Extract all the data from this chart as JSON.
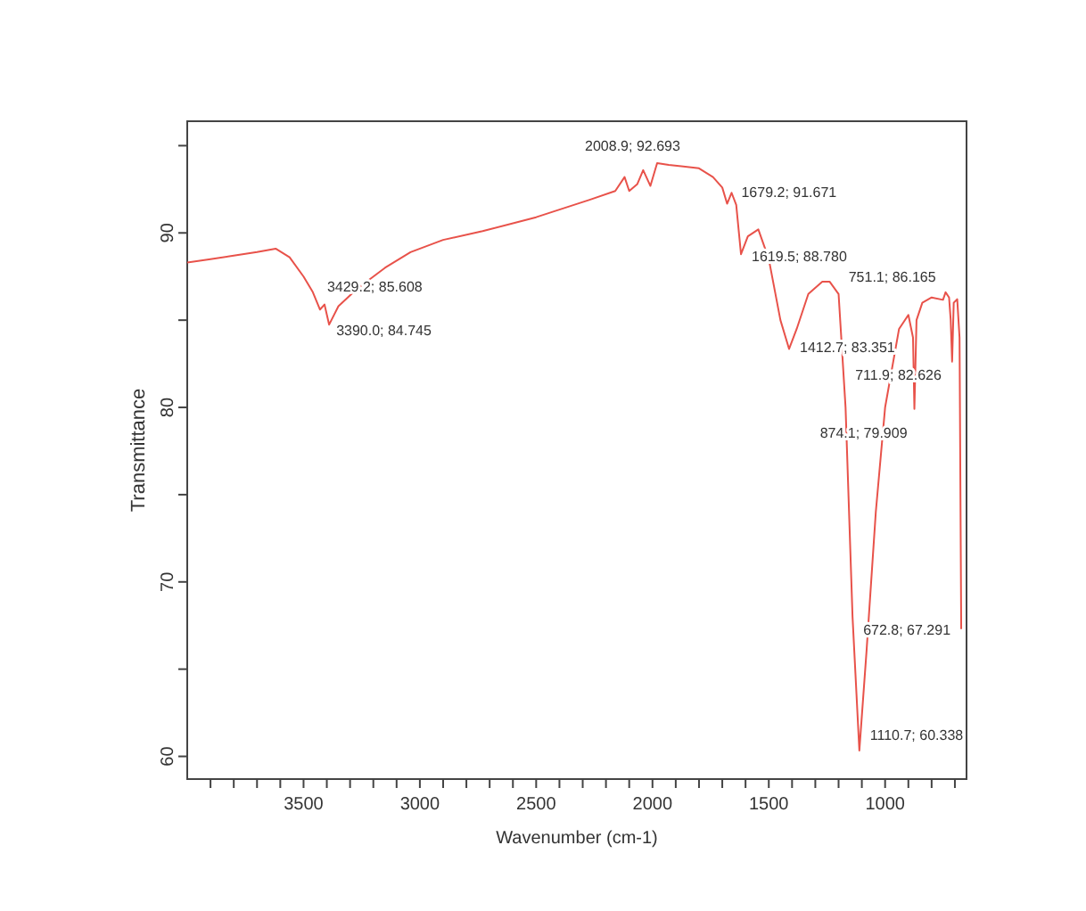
{
  "chart_data": {
    "type": "line",
    "xlabel": "Wavenumber (cm-1)",
    "ylabel": "Transmittance",
    "xlim": [
      4000,
      650
    ],
    "ylim": [
      58.7,
      96.4
    ],
    "xticks": [
      {
        "value": 3900,
        "label": null
      },
      {
        "value": 3800,
        "label": null
      },
      {
        "value": 3700,
        "label": null
      },
      {
        "value": 3600,
        "label": null
      },
      3500,
      {
        "value": 3400,
        "label": null
      },
      {
        "value": 3300,
        "label": null
      },
      {
        "value": 3200,
        "label": null
      },
      {
        "value": 3100,
        "label": null
      },
      3000,
      {
        "value": 2900,
        "label": null
      },
      {
        "value": 2800,
        "label": null
      },
      {
        "value": 2700,
        "label": null
      },
      {
        "value": 2600,
        "label": null
      },
      2500,
      {
        "value": 2400,
        "label": null
      },
      {
        "value": 2300,
        "label": null
      },
      {
        "value": 2200,
        "label": null
      },
      {
        "value": 2100,
        "label": null
      },
      2000,
      {
        "value": 1900,
        "label": null
      },
      {
        "value": 1800,
        "label": null
      },
      {
        "value": 1700,
        "label": null
      },
      {
        "value": 1600,
        "label": null
      },
      1500,
      {
        "value": 1400,
        "label": null
      },
      {
        "value": 1300,
        "label": null
      },
      {
        "value": 1200,
        "label": null
      },
      {
        "value": 1100,
        "label": null
      },
      1000,
      {
        "value": 900,
        "label": null
      },
      {
        "value": 800,
        "label": null
      },
      {
        "value": 700,
        "label": null
      }
    ],
    "yticks": [
      60,
      {
        "value": 65,
        "label": null
      },
      70,
      {
        "value": 75,
        "label": null
      },
      80,
      {
        "value": 85,
        "label": null
      },
      90,
      {
        "value": 95,
        "label": null
      }
    ],
    "grid": false,
    "marker": "none",
    "line_style": "solid",
    "series": [
      {
        "color": "#e8524a",
        "x": [
          4000,
          3900,
          3800,
          3700,
          3620,
          3560,
          3500,
          3460,
          3429.2,
          3410,
          3390,
          3350,
          3270,
          3150,
          3040,
          2900,
          2730,
          2500,
          2270,
          2160,
          2120,
          2100,
          2065,
          2040,
          2008.9,
          1980,
          1930,
          1800,
          1740,
          1700,
          1679.2,
          1660,
          1640,
          1619.5,
          1590,
          1545,
          1500,
          1450,
          1412.7,
          1380,
          1330,
          1270,
          1238,
          1200,
          1170,
          1140,
          1110.7,
          1080,
          1040,
          1000,
          940,
          900,
          880,
          874.1,
          865,
          840,
          800,
          751.1,
          740,
          725,
          718,
          711.9,
          705,
          690,
          680,
          672.8
        ],
        "values": [
          88.3,
          88.5,
          88.7,
          88.9,
          89.1,
          88.6,
          87.5,
          86.6,
          85.608,
          85.9,
          84.745,
          85.8,
          86.8,
          88,
          88.9,
          89.6,
          90.1,
          90.9,
          91.9,
          92.4,
          93.2,
          92.4,
          92.8,
          93.6,
          92.693,
          94,
          93.9,
          93.7,
          93.2,
          92.6,
          91.671,
          92.3,
          91.6,
          88.78,
          89.8,
          90.2,
          88.5,
          85,
          83.351,
          84.5,
          86.5,
          87.2,
          87.2,
          86.5,
          80,
          68,
          60.338,
          66,
          74,
          80,
          84.5,
          85.3,
          84,
          79.909,
          85,
          86,
          86.3,
          86.165,
          86.6,
          86.3,
          85,
          82.626,
          86,
          86.2,
          84,
          67.291
        ]
      }
    ],
    "annotations": [
      {
        "text": "3429.2; 85.608",
        "x": 3429.2,
        "y": 85.608
      },
      {
        "text": "3390.0; 84.745",
        "x": 3390,
        "y": 84.745
      },
      {
        "text": "2008.9; 92.693",
        "x": 2008.9,
        "y": 92.693
      },
      {
        "text": "1679.2; 91.671",
        "x": 1679.2,
        "y": 91.671
      },
      {
        "text": "1619.5; 88.780",
        "x": 1619.5,
        "y": 88.78
      },
      {
        "text": "1412.7; 83.351",
        "x": 1412.7,
        "y": 83.351
      },
      {
        "text": "751.1; 86.165",
        "x": 751.1,
        "y": 86.165
      },
      {
        "text": "711.9; 82.626",
        "x": 711.9,
        "y": 82.626
      },
      {
        "text": "874.1; 79.909",
        "x": 874.1,
        "y": 79.909
      },
      {
        "text": "672.8; 67.291",
        "x": 672.8,
        "y": 67.291
      },
      {
        "text": "1110.7; 60.338",
        "x": 1110.7,
        "y": 60.338
      }
    ]
  }
}
